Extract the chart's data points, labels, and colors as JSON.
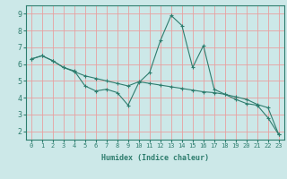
{
  "title": "",
  "xlabel": "Humidex (Indice chaleur)",
  "ylabel": "",
  "background_color": "#cce8e8",
  "grid_color": "#e8a0a0",
  "line_color": "#2e7d6e",
  "spine_color": "#2e7d6e",
  "xlim": [
    -0.5,
    23.5
  ],
  "ylim": [
    1.5,
    9.5
  ],
  "yticks": [
    2,
    3,
    4,
    5,
    6,
    7,
    8,
    9
  ],
  "xticks": [
    0,
    1,
    2,
    3,
    4,
    5,
    6,
    7,
    8,
    9,
    10,
    11,
    12,
    13,
    14,
    15,
    16,
    17,
    18,
    19,
    20,
    21,
    22,
    23
  ],
  "line1_x": [
    0,
    1,
    2,
    3,
    4,
    5,
    6,
    7,
    8,
    9,
    10,
    11,
    12,
    13,
    14,
    15,
    16,
    17,
    18,
    19,
    20,
    21,
    22,
    23
  ],
  "line1_y": [
    6.3,
    6.5,
    6.2,
    5.8,
    5.6,
    4.7,
    4.4,
    4.5,
    4.3,
    3.55,
    4.9,
    5.5,
    7.4,
    8.9,
    8.3,
    5.8,
    7.1,
    4.5,
    4.2,
    3.9,
    3.65,
    3.55,
    2.8,
    1.8
  ],
  "line2_x": [
    0,
    1,
    2,
    3,
    4,
    5,
    6,
    7,
    8,
    9,
    10,
    11,
    12,
    13,
    14,
    15,
    16,
    17,
    18,
    19,
    20,
    21,
    22,
    23
  ],
  "line2_y": [
    6.3,
    6.5,
    6.2,
    5.8,
    5.55,
    5.3,
    5.15,
    5.0,
    4.85,
    4.7,
    4.95,
    4.85,
    4.75,
    4.65,
    4.55,
    4.45,
    4.35,
    4.3,
    4.2,
    4.05,
    3.9,
    3.6,
    3.4,
    1.8
  ],
  "tick_fontsize": 5,
  "xlabel_fontsize": 6,
  "marker_size": 3
}
